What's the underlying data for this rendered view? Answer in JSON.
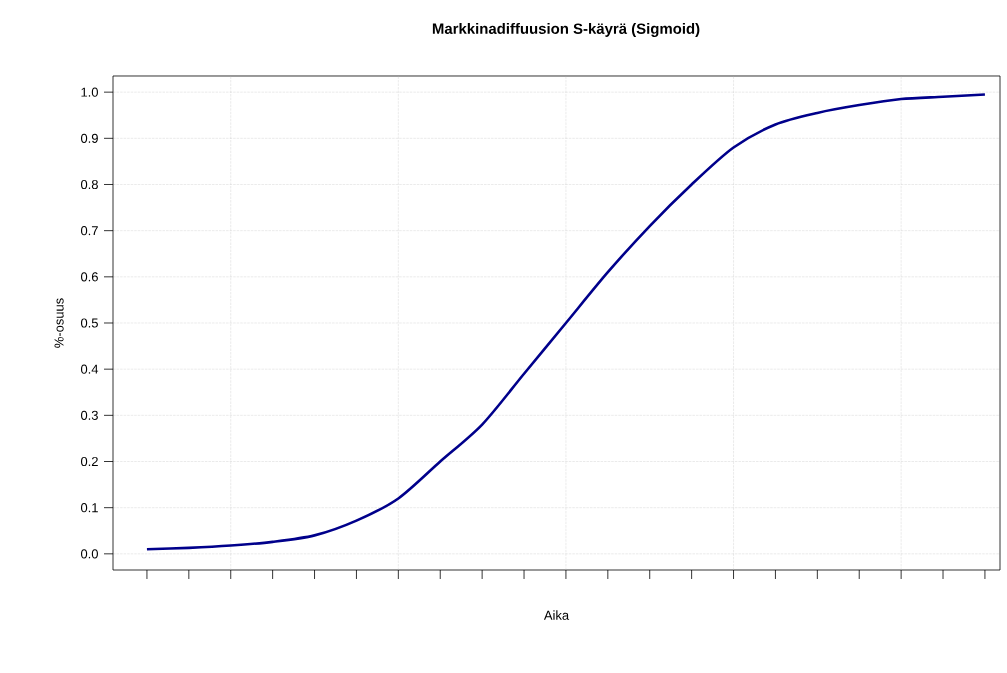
{
  "chart_data": {
    "type": "line",
    "title": "Markkinadiffuusion S-käyrä (Sigmoid)",
    "xlabel": "Aika",
    "ylabel": "%-osuus",
    "categories": [
      null,
      null,
      null,
      null,
      null,
      null,
      null,
      null,
      null,
      null,
      null,
      null,
      null,
      null,
      null,
      null,
      null,
      null,
      null,
      null,
      null
    ],
    "series": [
      {
        "color": "#00008b",
        "values": [
          0.01,
          0.013,
          0.018,
          0.026,
          0.04,
          0.072,
          0.12,
          0.2,
          0.28,
          0.39,
          0.5,
          0.61,
          0.71,
          0.8,
          0.88,
          0.93,
          0.955,
          0.972,
          0.985,
          0.99,
          0.995
        ]
      }
    ],
    "ylim": [
      -0.035,
      1.035
    ],
    "yticks": [
      {
        "value": 0,
        "label": "0.0"
      },
      0.1,
      0.2,
      0.3,
      0.4,
      0.5,
      0.6,
      0.7,
      0.8,
      0.9,
      {
        "value": 1,
        "label": "1.0"
      }
    ],
    "grid": true,
    "tick_labels": "y"
  }
}
